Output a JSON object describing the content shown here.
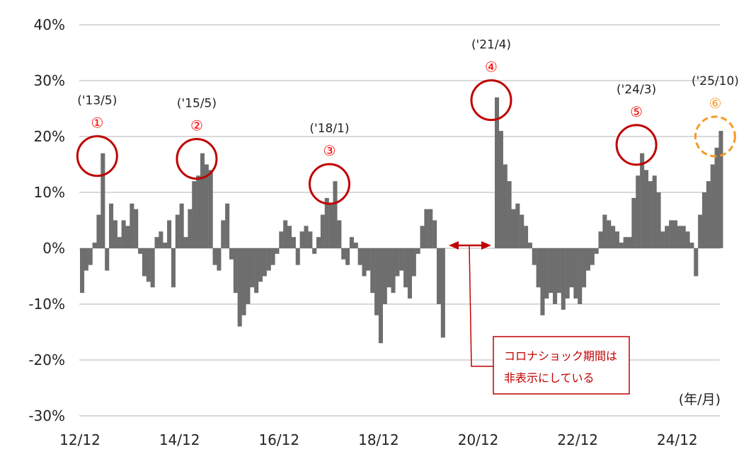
{
  "chart_data": {
    "type": "bar",
    "title": "",
    "xlabel": "(年/月)",
    "ylabel": "",
    "ylim": [
      -30,
      40
    ],
    "yticks": [
      40,
      30,
      20,
      10,
      0,
      -10,
      -20,
      -30
    ],
    "ytick_labels": [
      "40%",
      "30%",
      "20%",
      "10%",
      "0%",
      "-10%",
      "-20%",
      "-30%"
    ],
    "xtick_labels": [
      "12/12",
      "14/12",
      "16/12",
      "18/12",
      "20/12",
      "22/12",
      "24/12"
    ],
    "xtick_dates": [
      "2012/12",
      "2014/12",
      "2016/12",
      "2018/12",
      "2020/12",
      "2022/12",
      "2024/12"
    ],
    "grid": true,
    "bar_color": "#6e6e6e",
    "start_date": "2012/12",
    "values": [
      -8,
      -4,
      -3,
      1,
      6,
      17,
      -4,
      8,
      5,
      2,
      5,
      4,
      8,
      7,
      -1,
      -5,
      -6,
      -7,
      2,
      3,
      1,
      5,
      -7,
      6,
      8,
      2,
      7,
      12,
      13,
      17,
      15,
      14,
      -3,
      -4,
      5,
      8,
      -2,
      -8,
      -14,
      -12,
      -10,
      -7,
      -8,
      -6,
      -5,
      -4,
      -3,
      -1,
      3,
      5,
      4,
      2,
      -3,
      3,
      4,
      3,
      -1,
      2,
      6,
      9,
      8,
      12,
      5,
      -2,
      -3,
      2,
      1,
      -3,
      -5,
      -4,
      -8,
      -12,
      -17,
      -10,
      -7,
      -8,
      -5,
      -4,
      -7,
      -9,
      -5,
      -1,
      4,
      7,
      7,
      5,
      -10,
      -16,
      null,
      null,
      null,
      null,
      null,
      null,
      null,
      null,
      null,
      null,
      null,
      null,
      27,
      21,
      15,
      12,
      7,
      8,
      6,
      4,
      1,
      -3,
      -7,
      -12,
      -9,
      -8,
      -10,
      -8,
      -11,
      -9,
      -7,
      -9,
      -10,
      -7,
      -4,
      -3,
      -1,
      3,
      6,
      5,
      4,
      3,
      1,
      2,
      2,
      9,
      13,
      17,
      14,
      12,
      13,
      10,
      3,
      4,
      5,
      5,
      4,
      4,
      3,
      1,
      -5,
      6,
      10,
      12,
      15,
      18,
      21
    ],
    "annotations": [
      {
        "marker": "①",
        "date_label": "('13/5)",
        "date": "2013/05",
        "value": 16.5,
        "color": "#c00000",
        "label_color": "#ff0000",
        "style": "solid"
      },
      {
        "marker": "②",
        "date_label": "('15/5)",
        "date": "2015/05",
        "value": 16,
        "color": "#c00000",
        "label_color": "#ff0000",
        "style": "solid"
      },
      {
        "marker": "③",
        "date_label": "('18/1)",
        "date": "2018/01",
        "value": 11.5,
        "color": "#c00000",
        "label_color": "#ff0000",
        "style": "solid"
      },
      {
        "marker": "④",
        "date_label": "('21/4)",
        "date": "2021/04",
        "value": 26.5,
        "color": "#c00000",
        "label_color": "#ff0000",
        "style": "solid"
      },
      {
        "marker": "⑤",
        "date_label": "('24/3)",
        "date": "2024/03",
        "value": 18.5,
        "color": "#c00000",
        "label_color": "#ff0000",
        "style": "solid"
      },
      {
        "marker": "⑥",
        "date_label": "('25/10)",
        "date": "2025/10",
        "value": 20,
        "color": "#f59a23",
        "label_color": "#f59a23",
        "style": "dashed"
      }
    ],
    "note": {
      "lines": [
        "コロナショック期間は",
        "非表示にしている"
      ],
      "color": "#c00000",
      "gap_from": "2020/03",
      "gap_to": "2021/03"
    }
  }
}
